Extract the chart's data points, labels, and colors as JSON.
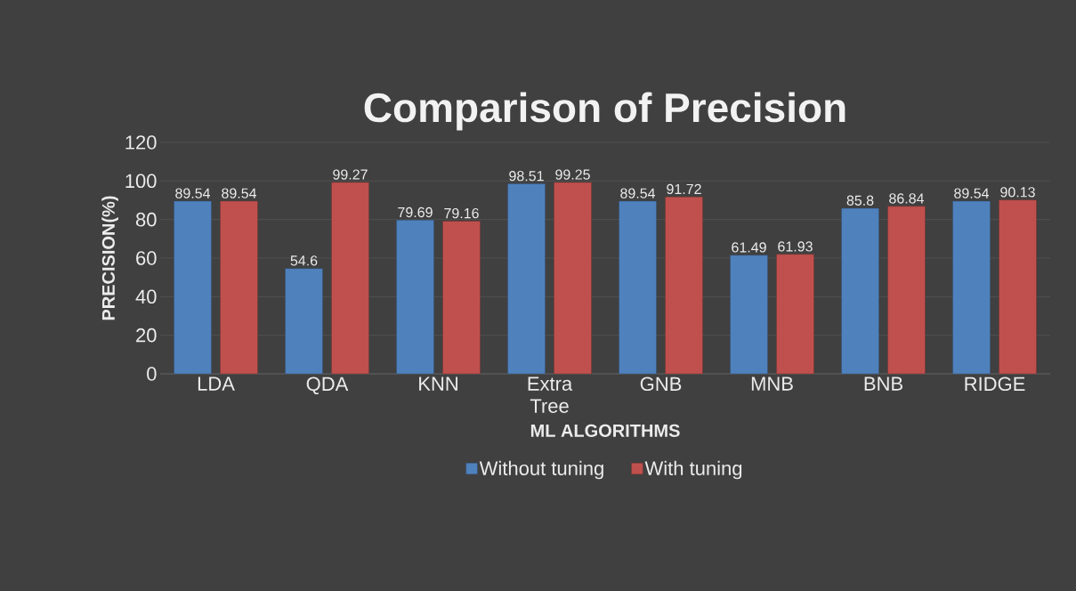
{
  "chart_data": {
    "type": "bar",
    "title": "Comparison of Precision",
    "xlabel": "ML ALGORITHMS",
    "ylabel": "PRECISION(%)",
    "categories": [
      "LDA",
      "QDA",
      "KNN",
      "Extra Tree",
      "GNB",
      "MNB",
      "BNB",
      "RIDGE"
    ],
    "series": [
      {
        "name": "Without tuning",
        "color": "#4f81bd",
        "values": [
          89.54,
          54.6,
          79.69,
          98.51,
          89.54,
          61.49,
          85.8,
          89.54
        ]
      },
      {
        "name": "With tuning",
        "color": "#c0504d",
        "values": [
          89.54,
          99.27,
          79.16,
          99.25,
          91.72,
          61.93,
          86.84,
          90.13
        ]
      }
    ],
    "ylim": [
      0,
      120
    ],
    "yticks": [
      0,
      20,
      40,
      60,
      80,
      100,
      120
    ],
    "grid": "y",
    "legend": "bottom",
    "data_labels": true
  }
}
